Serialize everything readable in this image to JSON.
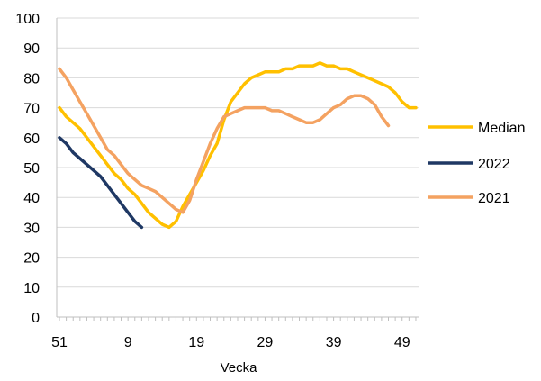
{
  "chart_data": {
    "type": "line",
    "xlabel": "Vecka",
    "x_tick_labels": [
      "51",
      "9",
      "19",
      "29",
      "39",
      "49"
    ],
    "y_tick_labels": [
      "0",
      "10",
      "20",
      "30",
      "40",
      "50",
      "60",
      "70",
      "80",
      "90",
      "100"
    ],
    "ylim": [
      0,
      100
    ],
    "grid": true,
    "legend": "right",
    "legend_entries": [
      "Median",
      "2022",
      "2021"
    ],
    "x_weeks": [
      51,
      52,
      1,
      2,
      3,
      4,
      5,
      6,
      7,
      8,
      9,
      10,
      11,
      12,
      13,
      14,
      15,
      16,
      17,
      18,
      19,
      20,
      21,
      22,
      23,
      24,
      25,
      26,
      27,
      28,
      29,
      30,
      31,
      32,
      33,
      34,
      35,
      36,
      37,
      38,
      39,
      40,
      41,
      42,
      43,
      44,
      45,
      46,
      47,
      48,
      49,
      50,
      51
    ],
    "series": [
      {
        "name": "Median",
        "color": "#FFC000",
        "values": [
          70,
          67,
          65,
          63,
          60,
          57,
          54,
          51,
          48,
          46,
          43,
          41,
          38,
          35,
          33,
          31,
          30,
          32,
          37,
          41,
          45,
          49,
          54,
          58,
          66,
          72,
          75,
          78,
          80,
          81,
          82,
          82,
          82,
          83,
          83,
          84,
          84,
          84,
          85,
          84,
          84,
          83,
          83,
          82,
          81,
          80,
          79,
          78,
          77,
          75,
          72,
          70,
          70
        ]
      },
      {
        "name": "2022",
        "color": "#1F3864",
        "values": [
          60,
          58,
          55,
          53,
          51,
          49,
          47,
          44,
          41,
          38,
          35,
          32,
          30
        ]
      },
      {
        "name": "2021",
        "color": "#F4A261",
        "values": [
          83,
          80,
          76,
          72,
          68,
          64,
          60,
          56,
          54,
          51,
          48,
          46,
          44,
          43,
          42,
          40,
          38,
          36,
          35,
          39,
          46,
          52,
          58,
          63,
          67,
          68,
          69,
          70,
          70,
          70,
          70,
          69,
          69,
          68,
          67,
          66,
          65,
          65,
          66,
          68,
          70,
          71,
          73,
          74,
          74,
          73,
          71,
          67,
          64
        ]
      }
    ]
  }
}
